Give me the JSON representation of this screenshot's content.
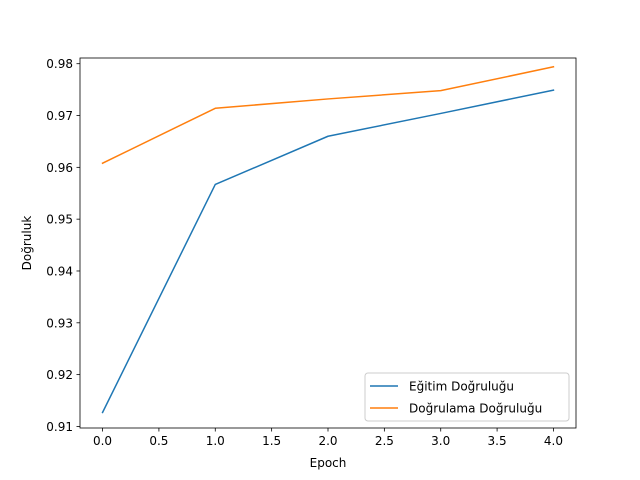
{
  "chart_data": {
    "type": "line",
    "title": "",
    "xlabel": "Epoch",
    "ylabel": "Doğruluk",
    "x": [
      0,
      1,
      2,
      3,
      4
    ],
    "xlim": [
      -0.2,
      4.2
    ],
    "ylim": [
      0.9097,
      0.9811
    ],
    "xticks": [
      "0.0",
      "0.5",
      "1.0",
      "1.5",
      "2.0",
      "2.5",
      "3.0",
      "3.5",
      "4.0"
    ],
    "xtick_values": [
      0,
      0.5,
      1,
      1.5,
      2,
      2.5,
      3,
      3.5,
      4
    ],
    "yticks": [
      "0.91",
      "0.92",
      "0.93",
      "0.94",
      "0.95",
      "0.96",
      "0.97",
      "0.98"
    ],
    "ytick_values": [
      0.91,
      0.92,
      0.93,
      0.94,
      0.95,
      0.96,
      0.97,
      0.98
    ],
    "grid": false,
    "legend_position": "lower-right",
    "series": [
      {
        "name": "Eğitim Doğruluğu",
        "color": "#1f77b4",
        "values": [
          0.9127,
          0.9567,
          0.966,
          0.9704,
          0.9749
        ]
      },
      {
        "name": "Doğrulama Doğruluğu",
        "color": "#ff7f0e",
        "values": [
          0.9608,
          0.9714,
          0.9732,
          0.9748,
          0.9794
        ]
      }
    ]
  }
}
